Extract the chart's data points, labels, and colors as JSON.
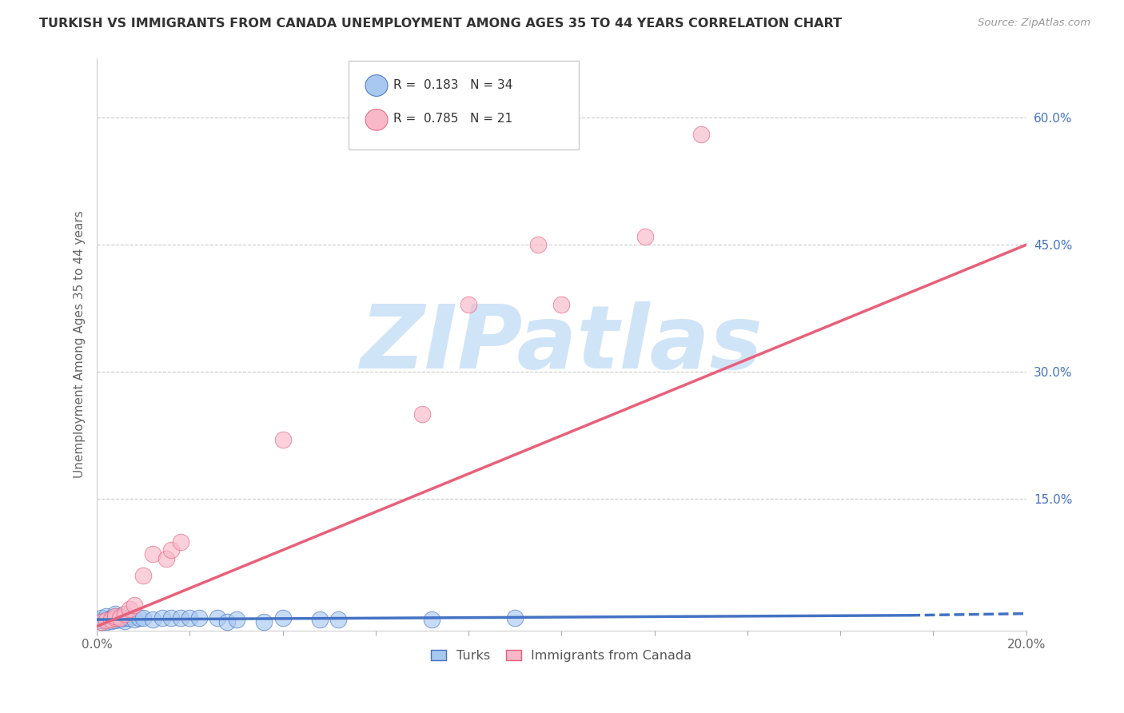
{
  "title": "TURKISH VS IMMIGRANTS FROM CANADA UNEMPLOYMENT AMONG AGES 35 TO 44 YEARS CORRELATION CHART",
  "source": "Source: ZipAtlas.com",
  "ylabel": "Unemployment Among Ages 35 to 44 years",
  "xlim": [
    0.0,
    0.2
  ],
  "ylim": [
    -0.005,
    0.67
  ],
  "xticks": [
    0.0,
    0.02,
    0.04,
    0.06,
    0.08,
    0.1,
    0.12,
    0.14,
    0.16,
    0.18,
    0.2
  ],
  "xticklabels": [
    "0.0%",
    "",
    "",
    "",
    "",
    "",
    "",
    "",
    "",
    "",
    "20.0%"
  ],
  "ytick_positions": [
    0.15,
    0.3,
    0.45,
    0.6
  ],
  "yticklabels": [
    "15.0%",
    "30.0%",
    "45.0%",
    "60.0%"
  ],
  "R_turks": 0.183,
  "N_turks": 34,
  "R_canada": 0.785,
  "N_canada": 21,
  "turks_color": "#a8c8f0",
  "canada_color": "#f8b8c8",
  "trend_turks_color": "#4472c4",
  "trend_canada_color": "#e8607a",
  "watermark": "ZIPatlas",
  "watermark_color": "#d0e4f8",
  "legend_label_turks": "Turks",
  "legend_label_canada": "Immigrants from Canada",
  "turks_x": [
    0.001,
    0.001,
    0.001,
    0.002,
    0.002,
    0.002,
    0.003,
    0.003,
    0.004,
    0.004,
    0.004,
    0.005,
    0.005,
    0.006,
    0.006,
    0.007,
    0.008,
    0.009,
    0.01,
    0.012,
    0.014,
    0.016,
    0.018,
    0.02,
    0.022,
    0.026,
    0.028,
    0.03,
    0.036,
    0.04,
    0.048,
    0.052,
    0.072,
    0.09
  ],
  "turks_y": [
    0.005,
    0.007,
    0.01,
    0.005,
    0.008,
    0.012,
    0.006,
    0.01,
    0.007,
    0.012,
    0.015,
    0.008,
    0.012,
    0.006,
    0.01,
    0.01,
    0.008,
    0.01,
    0.01,
    0.008,
    0.01,
    0.01,
    0.01,
    0.01,
    0.01,
    0.01,
    0.005,
    0.008,
    0.005,
    0.01,
    0.008,
    0.008,
    0.008,
    0.01
  ],
  "canada_x": [
    0.001,
    0.002,
    0.003,
    0.004,
    0.004,
    0.005,
    0.006,
    0.007,
    0.008,
    0.01,
    0.012,
    0.015,
    0.016,
    0.018,
    0.04,
    0.07,
    0.08,
    0.095,
    0.1,
    0.118,
    0.13
  ],
  "canada_y": [
    0.005,
    0.007,
    0.008,
    0.01,
    0.012,
    0.01,
    0.015,
    0.02,
    0.025,
    0.06,
    0.085,
    0.08,
    0.09,
    0.1,
    0.22,
    0.25,
    0.38,
    0.45,
    0.38,
    0.46,
    0.58
  ],
  "turks_trend": [
    0.0,
    0.175,
    0.008,
    0.012
  ],
  "turks_dashed": [
    0.175,
    0.2,
    0.012,
    0.014
  ],
  "canada_trend": [
    0.0,
    0.2,
    0.0,
    0.45
  ]
}
